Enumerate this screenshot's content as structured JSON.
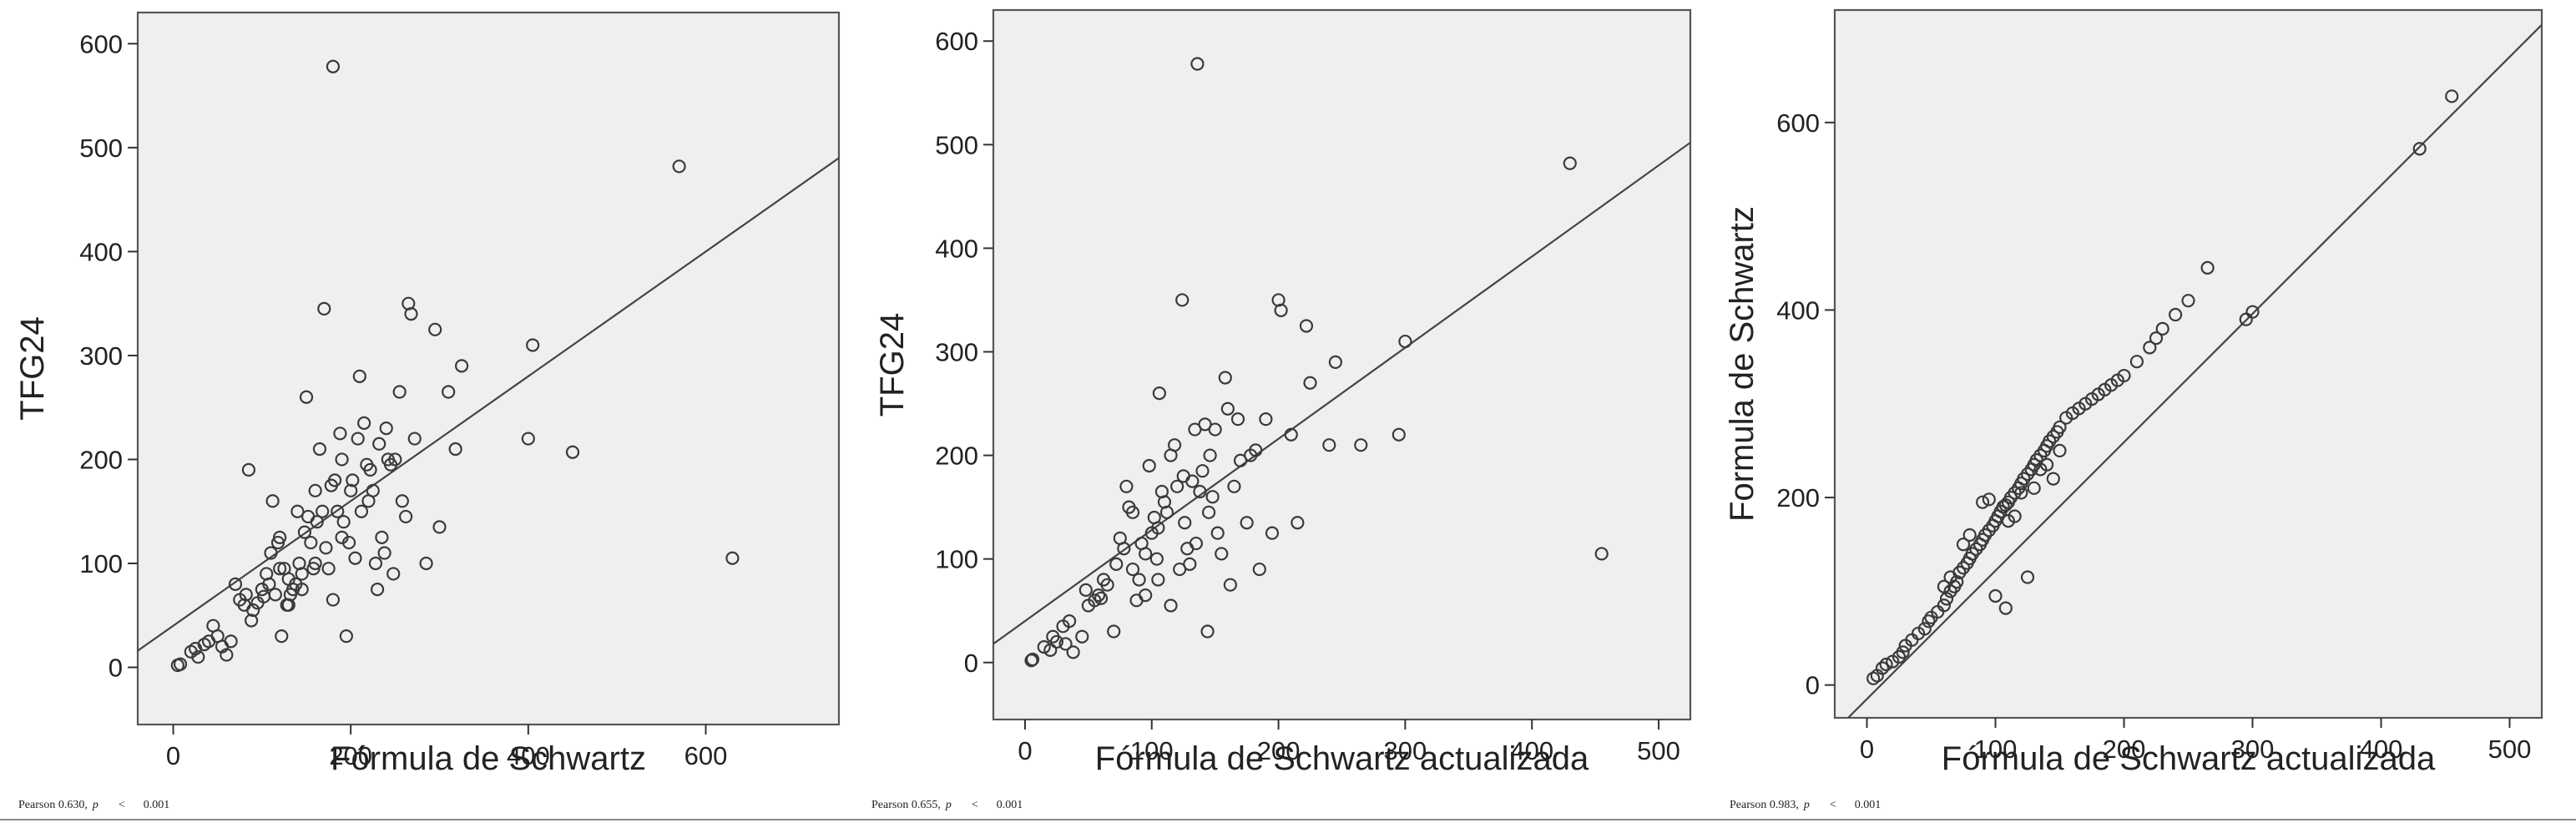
{
  "chart_data": [
    {
      "type": "scatter",
      "xlabel": "Fórmula de Schwartz",
      "ylabel": "TFG24",
      "xlim": [
        -40,
        750
      ],
      "ylim": [
        -55,
        630
      ],
      "xticks": [
        0,
        200,
        400,
        600
      ],
      "yticks": [
        0,
        100,
        200,
        300,
        400,
        500,
        600
      ],
      "fit_line": {
        "intercept": 40,
        "slope": 0.6
      },
      "footnote": {
        "stat": "Pearson 0.630,",
        "p": "p",
        "lt": "<",
        "pval": "0.001"
      },
      "points": [
        [
          5,
          2
        ],
        [
          8,
          3
        ],
        [
          20,
          15
        ],
        [
          25,
          18
        ],
        [
          28,
          10
        ],
        [
          35,
          22
        ],
        [
          40,
          25
        ],
        [
          45,
          40
        ],
        [
          50,
          30
        ],
        [
          55,
          20
        ],
        [
          60,
          12
        ],
        [
          65,
          25
        ],
        [
          70,
          80
        ],
        [
          75,
          65
        ],
        [
          80,
          60
        ],
        [
          82,
          70
        ],
        [
          85,
          190
        ],
        [
          88,
          45
        ],
        [
          90,
          55
        ],
        [
          95,
          62
        ],
        [
          100,
          75
        ],
        [
          102,
          68
        ],
        [
          105,
          90
        ],
        [
          108,
          80
        ],
        [
          110,
          110
        ],
        [
          112,
          160
        ],
        [
          115,
          70
        ],
        [
          118,
          120
        ],
        [
          120,
          125
        ],
        [
          122,
          30
        ],
        [
          125,
          95
        ],
        [
          128,
          60
        ],
        [
          130,
          85
        ],
        [
          132,
          70
        ],
        [
          135,
          75
        ],
        [
          138,
          80
        ],
        [
          140,
          150
        ],
        [
          142,
          100
        ],
        [
          145,
          90
        ],
        [
          148,
          130
        ],
        [
          150,
          260
        ],
        [
          152,
          145
        ],
        [
          155,
          120
        ],
        [
          158,
          95
        ],
        [
          160,
          170
        ],
        [
          162,
          140
        ],
        [
          165,
          210
        ],
        [
          168,
          150
        ],
        [
          170,
          345
        ],
        [
          172,
          115
        ],
        [
          175,
          95
        ],
        [
          178,
          175
        ],
        [
          180,
          65
        ],
        [
          182,
          180
        ],
        [
          185,
          150
        ],
        [
          188,
          225
        ],
        [
          190,
          200
        ],
        [
          192,
          140
        ],
        [
          195,
          30
        ],
        [
          198,
          120
        ],
        [
          200,
          170
        ],
        [
          202,
          180
        ],
        [
          205,
          105
        ],
        [
          208,
          220
        ],
        [
          210,
          280
        ],
        [
          212,
          150
        ],
        [
          215,
          235
        ],
        [
          218,
          195
        ],
        [
          220,
          160
        ],
        [
          222,
          190
        ],
        [
          225,
          170
        ],
        [
          228,
          100
        ],
        [
          230,
          75
        ],
        [
          232,
          215
        ],
        [
          235,
          125
        ],
        [
          238,
          110
        ],
        [
          240,
          230
        ],
        [
          242,
          200
        ],
        [
          245,
          195
        ],
        [
          248,
          90
        ],
        [
          250,
          200
        ],
        [
          255,
          265
        ],
        [
          258,
          160
        ],
        [
          262,
          145
        ],
        [
          265,
          350
        ],
        [
          268,
          340
        ],
        [
          272,
          220
        ],
        [
          285,
          100
        ],
        [
          295,
          325
        ],
        [
          300,
          135
        ],
        [
          310,
          265
        ],
        [
          318,
          210
        ],
        [
          325,
          290
        ],
        [
          400,
          220
        ],
        [
          405,
          310
        ],
        [
          450,
          207
        ],
        [
          570,
          482
        ],
        [
          630,
          105
        ],
        [
          180,
          578
        ],
        [
          130,
          60
        ],
        [
          160,
          100
        ],
        [
          190,
          125
        ],
        [
          120,
          95
        ],
        [
          145,
          75
        ]
      ]
    },
    {
      "type": "scatter",
      "xlabel": "Fórmula de Schwartz actualizada",
      "ylabel": "TFG24",
      "xlim": [
        -25,
        525
      ],
      "ylim": [
        -55,
        630
      ],
      "xticks": [
        0,
        100,
        200,
        300,
        400,
        500
      ],
      "yticks": [
        0,
        100,
        200,
        300,
        400,
        500,
        600
      ],
      "fit_line": {
        "intercept": 40,
        "slope": 0.88
      },
      "footnote": {
        "stat": "Pearson 0.655,",
        "p": "p",
        "lt": "<",
        "pval": "0.001"
      },
      "points": [
        [
          5,
          2
        ],
        [
          6,
          3
        ],
        [
          15,
          15
        ],
        [
          20,
          12
        ],
        [
          22,
          25
        ],
        [
          25,
          20
        ],
        [
          30,
          35
        ],
        [
          32,
          18
        ],
        [
          35,
          40
        ],
        [
          38,
          10
        ],
        [
          45,
          25
        ],
        [
          48,
          70
        ],
        [
          50,
          55
        ],
        [
          55,
          60
        ],
        [
          58,
          65
        ],
        [
          60,
          62
        ],
        [
          62,
          80
        ],
        [
          65,
          75
        ],
        [
          70,
          30
        ],
        [
          72,
          95
        ],
        [
          75,
          120
        ],
        [
          78,
          110
        ],
        [
          80,
          170
        ],
        [
          82,
          150
        ],
        [
          85,
          90
        ],
        [
          88,
          60
        ],
        [
          90,
          80
        ],
        [
          92,
          115
        ],
        [
          95,
          65
        ],
        [
          98,
          190
        ],
        [
          100,
          125
        ],
        [
          102,
          140
        ],
        [
          104,
          100
        ],
        [
          106,
          260
        ],
        [
          108,
          165
        ],
        [
          110,
          155
        ],
        [
          112,
          145
        ],
        [
          115,
          200
        ],
        [
          118,
          210
        ],
        [
          120,
          170
        ],
        [
          122,
          90
        ],
        [
          124,
          350
        ],
        [
          126,
          135
        ],
        [
          128,
          110
        ],
        [
          130,
          95
        ],
        [
          132,
          175
        ],
        [
          134,
          225
        ],
        [
          136,
          578
        ],
        [
          138,
          165
        ],
        [
          140,
          185
        ],
        [
          142,
          230
        ],
        [
          144,
          30
        ],
        [
          146,
          200
        ],
        [
          148,
          160
        ],
        [
          150,
          225
        ],
        [
          152,
          125
        ],
        [
          155,
          105
        ],
        [
          158,
          275
        ],
        [
          160,
          245
        ],
        [
          162,
          75
        ],
        [
          165,
          170
        ],
        [
          168,
          235
        ],
        [
          170,
          195
        ],
        [
          175,
          135
        ],
        [
          178,
          200
        ],
        [
          182,
          205
        ],
        [
          185,
          90
        ],
        [
          190,
          235
        ],
        [
          195,
          125
        ],
        [
          200,
          350
        ],
        [
          202,
          340
        ],
        [
          210,
          220
        ],
        [
          215,
          135
        ],
        [
          222,
          325
        ],
        [
          225,
          270
        ],
        [
          240,
          210
        ],
        [
          245,
          290
        ],
        [
          265,
          210
        ],
        [
          295,
          220
        ],
        [
          300,
          310
        ],
        [
          430,
          482
        ],
        [
          455,
          105
        ],
        [
          85,
          145
        ],
        [
          95,
          105
        ],
        [
          105,
          130
        ],
        [
          115,
          55
        ],
        [
          125,
          180
        ],
        [
          135,
          115
        ],
        [
          145,
          145
        ],
        [
          105,
          80
        ]
      ]
    },
    {
      "type": "scatter",
      "xlabel": "Fórmula de Schwartz actualizada",
      "ylabel": "Formula de Schwartz",
      "xlim": [
        -25,
        525
      ],
      "ylim": [
        -35,
        720
      ],
      "xticks": [
        0,
        100,
        200,
        300,
        400,
        500
      ],
      "yticks": [
        0,
        200,
        400,
        600
      ],
      "fit_line": {
        "intercept": -15,
        "slope": 1.37
      },
      "footnote": {
        "stat": "Pearson 0.983,",
        "p": "p",
        "lt": "<",
        "pval": "0.001"
      },
      "points": [
        [
          5,
          7
        ],
        [
          8,
          10
        ],
        [
          12,
          18
        ],
        [
          15,
          22
        ],
        [
          20,
          25
        ],
        [
          25,
          30
        ],
        [
          28,
          35
        ],
        [
          30,
          42
        ],
        [
          35,
          48
        ],
        [
          40,
          55
        ],
        [
          45,
          60
        ],
        [
          48,
          68
        ],
        [
          50,
          72
        ],
        [
          55,
          78
        ],
        [
          60,
          85
        ],
        [
          62,
          92
        ],
        [
          65,
          100
        ],
        [
          68,
          105
        ],
        [
          70,
          110
        ],
        [
          72,
          120
        ],
        [
          75,
          125
        ],
        [
          78,
          130
        ],
        [
          80,
          135
        ],
        [
          82,
          140
        ],
        [
          85,
          145
        ],
        [
          88,
          150
        ],
        [
          90,
          155
        ],
        [
          92,
          160
        ],
        [
          95,
          165
        ],
        [
          98,
          170
        ],
        [
          100,
          175
        ],
        [
          102,
          180
        ],
        [
          104,
          185
        ],
        [
          106,
          190
        ],
        [
          108,
          192
        ],
        [
          110,
          195
        ],
        [
          112,
          200
        ],
        [
          115,
          205
        ],
        [
          118,
          210
        ],
        [
          120,
          215
        ],
        [
          122,
          220
        ],
        [
          125,
          225
        ],
        [
          128,
          230
        ],
        [
          130,
          235
        ],
        [
          132,
          240
        ],
        [
          135,
          245
        ],
        [
          138,
          250
        ],
        [
          140,
          255
        ],
        [
          142,
          260
        ],
        [
          145,
          265
        ],
        [
          148,
          270
        ],
        [
          150,
          275
        ],
        [
          155,
          285
        ],
        [
          160,
          290
        ],
        [
          165,
          295
        ],
        [
          170,
          300
        ],
        [
          175,
          305
        ],
        [
          180,
          310
        ],
        [
          185,
          315
        ],
        [
          190,
          320
        ],
        [
          195,
          325
        ],
        [
          200,
          330
        ],
        [
          210,
          345
        ],
        [
          220,
          360
        ],
        [
          225,
          370
        ],
        [
          230,
          380
        ],
        [
          240,
          395
        ],
        [
          250,
          410
        ],
        [
          265,
          445
        ],
        [
          295,
          390
        ],
        [
          300,
          398
        ],
        [
          430,
          572
        ],
        [
          455,
          628
        ],
        [
          100,
          95
        ],
        [
          108,
          82
        ],
        [
          125,
          115
        ],
        [
          150,
          250
        ],
        [
          135,
          230
        ],
        [
          140,
          235
        ],
        [
          90,
          195
        ],
        [
          95,
          198
        ],
        [
          75,
          150
        ],
        [
          80,
          160
        ],
        [
          60,
          105
        ],
        [
          65,
          115
        ],
        [
          120,
          205
        ],
        [
          130,
          210
        ],
        [
          110,
          175
        ],
        [
          115,
          180
        ],
        [
          145,
          220
        ]
      ]
    }
  ]
}
